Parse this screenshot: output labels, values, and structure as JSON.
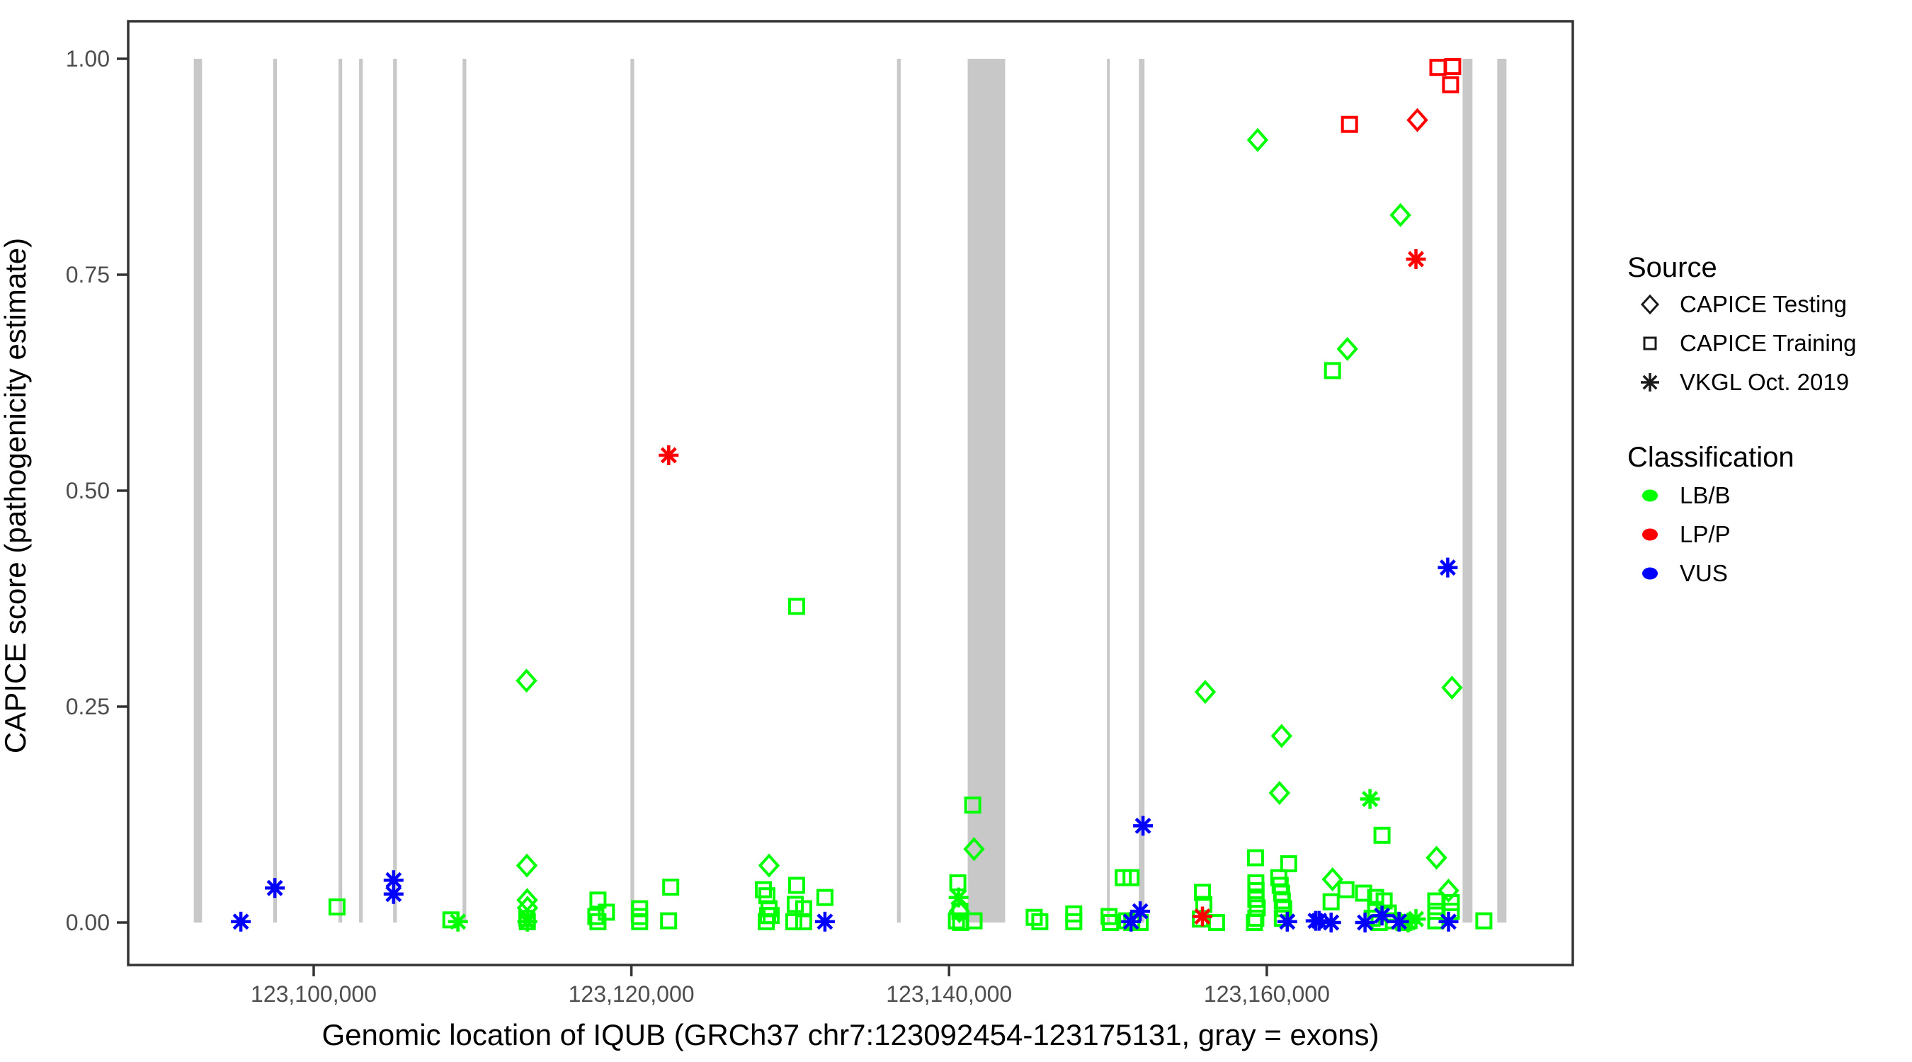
{
  "legend": {
    "source": {
      "title": "Source",
      "items": [
        {
          "label": "CAPICE Testing",
          "shape": "diamond"
        },
        {
          "label": "CAPICE Training",
          "shape": "square"
        },
        {
          "label": "VKGL Oct. 2019",
          "shape": "asterisk"
        }
      ]
    },
    "classification": {
      "title": "Classification",
      "items": [
        {
          "label": "LB/B",
          "color": "#00ff00"
        },
        {
          "label": "LP/P",
          "color": "#ff0000"
        },
        {
          "label": "VUS",
          "color": "#0000ff"
        }
      ]
    }
  },
  "colors": {
    "LB/B": "#00ff00",
    "LP/P": "#ff0000",
    "VUS": "#0000ff",
    "exon": "#c8c8c8",
    "axis": "#333333",
    "tick_label": "#4d4d4d",
    "legend_glyph": "#1a1a1a"
  },
  "chart_data": {
    "type": "scatter",
    "title": "",
    "xlabel": "Genomic location of IQUB (GRCh37 chr7:123092454-123175131, gray = exons)",
    "ylabel": "CAPICE score (pathogenicity estimate)",
    "xlim": [
      123088320,
      123179265
    ],
    "ylim": [
      -0.05,
      1.045
    ],
    "grid": false,
    "legend_position": "right",
    "x_ticks": [
      {
        "value": 123100000,
        "label": "123,100,000"
      },
      {
        "value": 123120000,
        "label": "123,120,000"
      },
      {
        "value": 123140000,
        "label": "123,140,000"
      },
      {
        "value": 123160000,
        "label": "123,160,000"
      }
    ],
    "y_ticks": [
      {
        "value": 1.0,
        "label": "1.00"
      },
      {
        "value": 0.75,
        "label": "0.75"
      },
      {
        "value": 0.5,
        "label": "0.50"
      },
      {
        "value": 0.25,
        "label": "0.25"
      },
      {
        "value": 0.0,
        "label": "0.00"
      }
    ],
    "exons_note": "gray = exons",
    "exons": [
      [
        123092454,
        123092970
      ],
      [
        123097450,
        123097680
      ],
      [
        123101560,
        123101790
      ],
      [
        123102860,
        123103090
      ],
      [
        123105000,
        123105230
      ],
      [
        123109370,
        123109600
      ],
      [
        123119940,
        123120170
      ],
      [
        123136720,
        123136950
      ],
      [
        123141170,
        123143530
      ],
      [
        123149940,
        123150120
      ],
      [
        123151950,
        123152300
      ],
      [
        123172330,
        123172950
      ],
      [
        123174510,
        123175090
      ]
    ],
    "shape_meaning": {
      "diamond": "CAPICE Testing",
      "square": "CAPICE Training",
      "asterisk": "VKGL Oct. 2019"
    },
    "points": [
      {
        "x": 123113398,
        "y": 0.28,
        "shape": "diamond",
        "cls": "LB/B"
      },
      {
        "x": 123113420,
        "y": 0.066,
        "shape": "diamond",
        "cls": "LB/B"
      },
      {
        "x": 123113440,
        "y": 0.026,
        "shape": "diamond",
        "cls": "LB/B"
      },
      {
        "x": 123113460,
        "y": 0.017,
        "shape": "diamond",
        "cls": "LB/B"
      },
      {
        "x": 123128666,
        "y": 0.066,
        "shape": "diamond",
        "cls": "LB/B"
      },
      {
        "x": 123141572,
        "y": 0.085,
        "shape": "diamond",
        "cls": "LB/B"
      },
      {
        "x": 123140650,
        "y": 0.013,
        "shape": "diamond",
        "cls": "LB/B"
      },
      {
        "x": 123156128,
        "y": 0.267,
        "shape": "diamond",
        "cls": "LB/B"
      },
      {
        "x": 123159421,
        "y": 0.906,
        "shape": "diamond",
        "cls": "LB/B"
      },
      {
        "x": 123160934,
        "y": 0.216,
        "shape": "diamond",
        "cls": "LB/B"
      },
      {
        "x": 123160801,
        "y": 0.15,
        "shape": "diamond",
        "cls": "LB/B"
      },
      {
        "x": 123164139,
        "y": 0.05,
        "shape": "diamond",
        "cls": "LB/B"
      },
      {
        "x": 123165074,
        "y": 0.664,
        "shape": "diamond",
        "cls": "LB/B"
      },
      {
        "x": 123168412,
        "y": 0.819,
        "shape": "diamond",
        "cls": "LB/B"
      },
      {
        "x": 123170682,
        "y": 0.075,
        "shape": "diamond",
        "cls": "LB/B"
      },
      {
        "x": 123171661,
        "y": 0.272,
        "shape": "diamond",
        "cls": "LB/B"
      },
      {
        "x": 123171439,
        "y": 0.037,
        "shape": "diamond",
        "cls": "LB/B"
      },
      {
        "x": 123109080,
        "y": 0.001,
        "shape": "asterisk",
        "cls": "LB/B"
      },
      {
        "x": 123113450,
        "y": 0.001,
        "shape": "asterisk",
        "cls": "LB/B"
      },
      {
        "x": 123140600,
        "y": 0.029,
        "shape": "asterisk",
        "cls": "LB/B"
      },
      {
        "x": 123166498,
        "y": 0.143,
        "shape": "asterisk",
        "cls": "LB/B"
      },
      {
        "x": 123169391,
        "y": 0.004,
        "shape": "asterisk",
        "cls": "LB/B"
      },
      {
        "x": 123168900,
        "y": 0.0,
        "shape": "asterisk",
        "cls": "LB/B"
      },
      {
        "x": 123101469,
        "y": 0.018,
        "shape": "square",
        "cls": "LB/B"
      },
      {
        "x": 123108635,
        "y": 0.003,
        "shape": "square",
        "cls": "LB/B"
      },
      {
        "x": 123113420,
        "y": 0.005,
        "shape": "square",
        "cls": "LB/B"
      },
      {
        "x": 123113450,
        "y": 0.001,
        "shape": "square",
        "cls": "LB/B"
      },
      {
        "x": 123117893,
        "y": 0.026,
        "shape": "square",
        "cls": "LB/B"
      },
      {
        "x": 123118427,
        "y": 0.012,
        "shape": "square",
        "cls": "LB/B"
      },
      {
        "x": 123117759,
        "y": 0.007,
        "shape": "square",
        "cls": "LB/B"
      },
      {
        "x": 123117893,
        "y": 0.001,
        "shape": "square",
        "cls": "LB/B"
      },
      {
        "x": 123120519,
        "y": 0.016,
        "shape": "square",
        "cls": "LB/B"
      },
      {
        "x": 123120519,
        "y": 0.007,
        "shape": "square",
        "cls": "LB/B"
      },
      {
        "x": 123120519,
        "y": 0.001,
        "shape": "square",
        "cls": "LB/B"
      },
      {
        "x": 123122478,
        "y": 0.041,
        "shape": "square",
        "cls": "LB/B"
      },
      {
        "x": 123122344,
        "y": 0.002,
        "shape": "square",
        "cls": "LB/B"
      },
      {
        "x": 123130400,
        "y": 0.366,
        "shape": "square",
        "cls": "LB/B"
      },
      {
        "x": 123128310,
        "y": 0.038,
        "shape": "square",
        "cls": "LB/B"
      },
      {
        "x": 123128530,
        "y": 0.031,
        "shape": "square",
        "cls": "LB/B"
      },
      {
        "x": 123128666,
        "y": 0.016,
        "shape": "square",
        "cls": "LB/B"
      },
      {
        "x": 123128577,
        "y": 0.008,
        "shape": "square",
        "cls": "LB/B"
      },
      {
        "x": 123128800,
        "y": 0.008,
        "shape": "square",
        "cls": "LB/B"
      },
      {
        "x": 123128488,
        "y": 0.001,
        "shape": "square",
        "cls": "LB/B"
      },
      {
        "x": 123130402,
        "y": 0.043,
        "shape": "square",
        "cls": "LB/B"
      },
      {
        "x": 123130313,
        "y": 0.021,
        "shape": "square",
        "cls": "LB/B"
      },
      {
        "x": 123130847,
        "y": 0.016,
        "shape": "square",
        "cls": "LB/B"
      },
      {
        "x": 123130224,
        "y": 0.001,
        "shape": "square",
        "cls": "LB/B"
      },
      {
        "x": 123130847,
        "y": 0.001,
        "shape": "square",
        "cls": "LB/B"
      },
      {
        "x": 123132182,
        "y": 0.029,
        "shape": "square",
        "cls": "LB/B"
      },
      {
        "x": 123141485,
        "y": 0.136,
        "shape": "square",
        "cls": "LB/B"
      },
      {
        "x": 123140550,
        "y": 0.046,
        "shape": "square",
        "cls": "LB/B"
      },
      {
        "x": 123140683,
        "y": 0.013,
        "shape": "square",
        "cls": "LB/B"
      },
      {
        "x": 123140461,
        "y": 0.002,
        "shape": "square",
        "cls": "LB/B"
      },
      {
        "x": 123141574,
        "y": 0.002,
        "shape": "square",
        "cls": "LB/B"
      },
      {
        "x": 123140728,
        "y": 0.0,
        "shape": "square",
        "cls": "LB/B"
      },
      {
        "x": 123145357,
        "y": 0.006,
        "shape": "square",
        "cls": "LB/B"
      },
      {
        "x": 123145713,
        "y": 0.001,
        "shape": "square",
        "cls": "LB/B"
      },
      {
        "x": 123147850,
        "y": 0.01,
        "shape": "square",
        "cls": "LB/B"
      },
      {
        "x": 123147850,
        "y": 0.001,
        "shape": "square",
        "cls": "LB/B"
      },
      {
        "x": 123150075,
        "y": 0.007,
        "shape": "square",
        "cls": "LB/B"
      },
      {
        "x": 123150164,
        "y": 0.0,
        "shape": "square",
        "cls": "LB/B"
      },
      {
        "x": 123150965,
        "y": 0.052,
        "shape": "square",
        "cls": "LB/B"
      },
      {
        "x": 123151455,
        "y": 0.052,
        "shape": "square",
        "cls": "LB/B"
      },
      {
        "x": 123151188,
        "y": 0.002,
        "shape": "square",
        "cls": "LB/B"
      },
      {
        "x": 123151500,
        "y": 0.0,
        "shape": "square",
        "cls": "LB/B"
      },
      {
        "x": 123152030,
        "y": 0.0,
        "shape": "square",
        "cls": "LB/B"
      },
      {
        "x": 123155950,
        "y": 0.035,
        "shape": "square",
        "cls": "LB/B"
      },
      {
        "x": 123156039,
        "y": 0.021,
        "shape": "square",
        "cls": "LB/B"
      },
      {
        "x": 123155816,
        "y": 0.004,
        "shape": "square",
        "cls": "LB/B"
      },
      {
        "x": 123156840,
        "y": 0.0,
        "shape": "square",
        "cls": "LB/B"
      },
      {
        "x": 123159288,
        "y": 0.075,
        "shape": "square",
        "cls": "LB/B"
      },
      {
        "x": 123159310,
        "y": 0.046,
        "shape": "square",
        "cls": "LB/B"
      },
      {
        "x": 123159330,
        "y": 0.037,
        "shape": "square",
        "cls": "LB/B"
      },
      {
        "x": 123159310,
        "y": 0.027,
        "shape": "square",
        "cls": "LB/B"
      },
      {
        "x": 123159400,
        "y": 0.017,
        "shape": "square",
        "cls": "LB/B"
      },
      {
        "x": 123159310,
        "y": 0.005,
        "shape": "square",
        "cls": "LB/B"
      },
      {
        "x": 123159221,
        "y": 0.0,
        "shape": "square",
        "cls": "LB/B"
      },
      {
        "x": 123161379,
        "y": 0.068,
        "shape": "square",
        "cls": "LB/B"
      },
      {
        "x": 123160756,
        "y": 0.052,
        "shape": "square",
        "cls": "LB/B"
      },
      {
        "x": 123160845,
        "y": 0.043,
        "shape": "square",
        "cls": "LB/B"
      },
      {
        "x": 123160934,
        "y": 0.034,
        "shape": "square",
        "cls": "LB/B"
      },
      {
        "x": 123160979,
        "y": 0.025,
        "shape": "square",
        "cls": "LB/B"
      },
      {
        "x": 123161068,
        "y": 0.016,
        "shape": "square",
        "cls": "LB/B"
      },
      {
        "x": 123160979,
        "y": 0.005,
        "shape": "square",
        "cls": "LB/B"
      },
      {
        "x": 123164139,
        "y": 0.639,
        "shape": "square",
        "cls": "LB/B"
      },
      {
        "x": 123164985,
        "y": 0.038,
        "shape": "square",
        "cls": "LB/B"
      },
      {
        "x": 123166097,
        "y": 0.034,
        "shape": "square",
        "cls": "LB/B"
      },
      {
        "x": 123164050,
        "y": 0.024,
        "shape": "square",
        "cls": "LB/B"
      },
      {
        "x": 123166854,
        "y": 0.029,
        "shape": "square",
        "cls": "LB/B"
      },
      {
        "x": 123167388,
        "y": 0.025,
        "shape": "square",
        "cls": "LB/B"
      },
      {
        "x": 123166854,
        "y": 0.015,
        "shape": "square",
        "cls": "LB/B"
      },
      {
        "x": 123167655,
        "y": 0.011,
        "shape": "square",
        "cls": "LB/B"
      },
      {
        "x": 123166631,
        "y": 0.005,
        "shape": "square",
        "cls": "LB/B"
      },
      {
        "x": 123167967,
        "y": 0.002,
        "shape": "square",
        "cls": "LB/B"
      },
      {
        "x": 123167076,
        "y": 0.0,
        "shape": "square",
        "cls": "LB/B"
      },
      {
        "x": 123168634,
        "y": 0.0,
        "shape": "square",
        "cls": "LB/B"
      },
      {
        "x": 123167254,
        "y": 0.101,
        "shape": "square",
        "cls": "LB/B"
      },
      {
        "x": 123170637,
        "y": 0.025,
        "shape": "square",
        "cls": "LB/B"
      },
      {
        "x": 123171616,
        "y": 0.023,
        "shape": "square",
        "cls": "LB/B"
      },
      {
        "x": 123170637,
        "y": 0.013,
        "shape": "square",
        "cls": "LB/B"
      },
      {
        "x": 123171616,
        "y": 0.013,
        "shape": "square",
        "cls": "LB/B"
      },
      {
        "x": 123170637,
        "y": 0.002,
        "shape": "square",
        "cls": "LB/B"
      },
      {
        "x": 123173664,
        "y": 0.002,
        "shape": "square",
        "cls": "LB/B"
      },
      {
        "x": 123095415,
        "y": 0.001,
        "shape": "asterisk",
        "cls": "VUS"
      },
      {
        "x": 123097552,
        "y": 0.04,
        "shape": "asterisk",
        "cls": "VUS"
      },
      {
        "x": 123105030,
        "y": 0.049,
        "shape": "asterisk",
        "cls": "VUS"
      },
      {
        "x": 123105030,
        "y": 0.033,
        "shape": "asterisk",
        "cls": "VUS"
      },
      {
        "x": 123132182,
        "y": 0.001,
        "shape": "asterisk",
        "cls": "VUS"
      },
      {
        "x": 123152211,
        "y": 0.112,
        "shape": "asterisk",
        "cls": "VUS"
      },
      {
        "x": 123152030,
        "y": 0.013,
        "shape": "asterisk",
        "cls": "VUS"
      },
      {
        "x": 123151455,
        "y": 0.001,
        "shape": "asterisk",
        "cls": "VUS"
      },
      {
        "x": 123161290,
        "y": 0.001,
        "shape": "asterisk",
        "cls": "VUS"
      },
      {
        "x": 123163071,
        "y": 0.002,
        "shape": "asterisk",
        "cls": "VUS"
      },
      {
        "x": 123163293,
        "y": 0.002,
        "shape": "asterisk",
        "cls": "VUS"
      },
      {
        "x": 123164050,
        "y": 0.0,
        "shape": "asterisk",
        "cls": "VUS"
      },
      {
        "x": 123166186,
        "y": 0.0,
        "shape": "asterisk",
        "cls": "VUS"
      },
      {
        "x": 123167254,
        "y": 0.008,
        "shape": "asterisk",
        "cls": "VUS"
      },
      {
        "x": 123168323,
        "y": 0.001,
        "shape": "asterisk",
        "cls": "VUS"
      },
      {
        "x": 123171394,
        "y": 0.411,
        "shape": "asterisk",
        "cls": "VUS"
      },
      {
        "x": 123171439,
        "y": 0.001,
        "shape": "asterisk",
        "cls": "VUS"
      },
      {
        "x": 123122350,
        "y": 0.541,
        "shape": "asterisk",
        "cls": "LP/P"
      },
      {
        "x": 123155950,
        "y": 0.007,
        "shape": "asterisk",
        "cls": "LP/P"
      },
      {
        "x": 123169391,
        "y": 0.768,
        "shape": "asterisk",
        "cls": "LP/P"
      },
      {
        "x": 123165207,
        "y": 0.924,
        "shape": "square",
        "cls": "LP/P"
      },
      {
        "x": 123170771,
        "y": 0.99,
        "shape": "square",
        "cls": "LP/P"
      },
      {
        "x": 123171705,
        "y": 0.991,
        "shape": "square",
        "cls": "LP/P"
      },
      {
        "x": 123171572,
        "y": 0.97,
        "shape": "square",
        "cls": "LP/P"
      },
      {
        "x": 123169480,
        "y": 0.929,
        "shape": "diamond",
        "cls": "LP/P"
      }
    ]
  }
}
